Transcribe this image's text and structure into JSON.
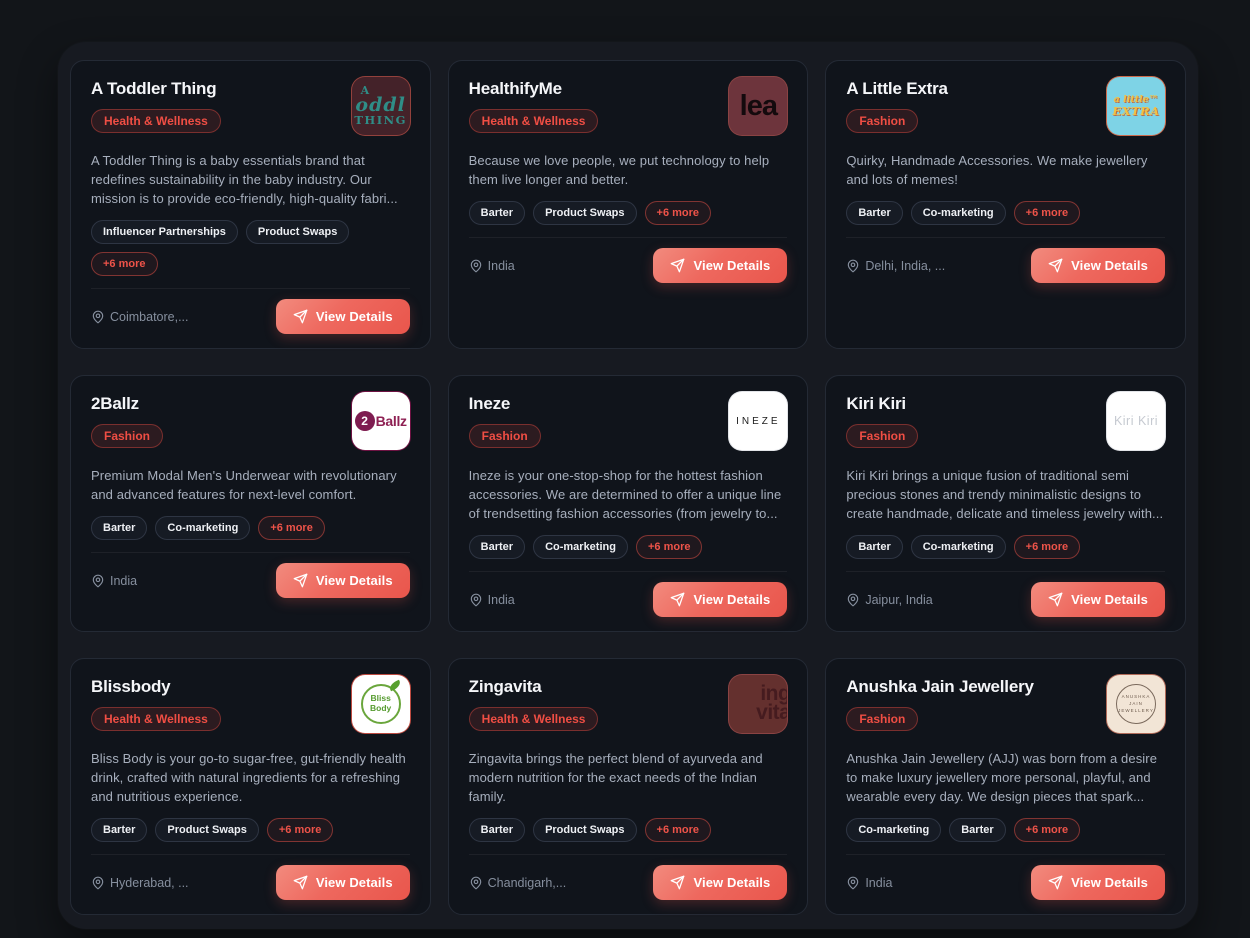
{
  "theme": {
    "accent": "#e9564c",
    "category_badge_color": "#f04e44",
    "more_badge_color": "#ee5349",
    "page_bg": "#121519",
    "panel_bg": "#171a21",
    "card_bg": "#10141b"
  },
  "icons": {
    "location": "map-pin-icon",
    "cta": "send-icon"
  },
  "cards": [
    {
      "name": "A Toddler Thing",
      "category": "Health & Wellness",
      "description": "A Toddler Thing is a baby essentials brand that redefines sustainability in the baby industry. Our mission is to provide eco-friendly, high-quality fabri...",
      "tags": [
        "Influencer Partnerships",
        "Product Swaps"
      ],
      "more_label": "+6 more",
      "location": "Coimbatore,...",
      "cta_label": "View Details",
      "logo": {
        "variant": "toddler",
        "bg": "#442229",
        "fg": "#2f8d87",
        "border": "#93413c",
        "lines": [
          "A",
          "oddl",
          "THING"
        ]
      }
    },
    {
      "name": "HealthifyMe",
      "category": "Health & Wellness",
      "description": "Because we love people, we put technology to help them live longer and better.",
      "tags": [
        "Barter",
        "Product Swaps"
      ],
      "more_label": "+6 more",
      "location": "India",
      "cta_label": "View Details",
      "logo": {
        "variant": "crop-big",
        "bg": "#6d343c",
        "fg": "#140a0d",
        "border": "#8a4343",
        "lines": [
          "lea"
        ]
      }
    },
    {
      "name": "A Little Extra",
      "category": "Fashion",
      "description": "Quirky, Handmade Accessories. We make jewellery and lots of memes!",
      "tags": [
        "Barter",
        "Co-marketing"
      ],
      "more_label": "+6 more",
      "location": "Delhi, India, ...",
      "cta_label": "View Details",
      "logo": {
        "variant": "little-extra",
        "bg": "#7ed3e6",
        "fg": "#f2c043",
        "border": "#cc6a4c",
        "lines": [
          "a little™",
          "EXTRA"
        ]
      }
    },
    {
      "name": "2Ballz",
      "category": "Fashion",
      "description": "Premium Modal Men's Underwear with revolutionary and advanced features for next-level comfort.",
      "tags": [
        "Barter",
        "Co-marketing"
      ],
      "more_label": "+6 more",
      "location": "India",
      "cta_label": "View Details",
      "logo": {
        "variant": "2ballz",
        "bg": "#ffffff",
        "fg": "#8e2053",
        "border": "#6d1242",
        "lines": [
          "2",
          "Ballz"
        ]
      }
    },
    {
      "name": "Ineze",
      "category": "Fashion",
      "description": "Ineze is your one-stop-shop for the hottest fashion accessories. We are determined to offer a unique line of trendsetting fashion accessories (from jewelry to...",
      "tags": [
        "Barter",
        "Co-marketing"
      ],
      "more_label": "+6 more",
      "location": "India",
      "cta_label": "View Details",
      "logo": {
        "variant": "ineze",
        "bg": "#ffffff",
        "fg": "#1c1c1c",
        "border": "#e2e4e8",
        "lines": [
          "INEZE"
        ]
      }
    },
    {
      "name": "Kiri Kiri",
      "category": "Fashion",
      "description": "Kiri Kiri brings a unique fusion of traditional semi precious stones and trendy minimalistic designs to create handmade, delicate and timeless jewelry with...",
      "tags": [
        "Barter",
        "Co-marketing"
      ],
      "more_label": "+6 more",
      "location": "Jaipur, India",
      "cta_label": "View Details",
      "logo": {
        "variant": "kirikiri",
        "bg": "#ffffff",
        "fg": "#c6cad1",
        "border": "#e2e4e8",
        "lines": [
          "Kiri Kiri"
        ]
      }
    },
    {
      "name": "Blissbody",
      "category": "Health & Wellness",
      "description": "Bliss Body is your go-to sugar-free, gut-friendly health drink, crafted with natural ingredients for a refreshing and nutritious experience.",
      "tags": [
        "Barter",
        "Product Swaps"
      ],
      "more_label": "+6 more",
      "location": "Hyderabad, ...",
      "cta_label": "View Details",
      "logo": {
        "variant": "bliss",
        "bg": "#ffffff",
        "fg": "#569b2f",
        "border": "#bc4a40",
        "lines": [
          "Bliss",
          "Body"
        ]
      }
    },
    {
      "name": "Zingavita",
      "category": "Health & Wellness",
      "description": "Zingavita brings the perfect blend of ayurveda and modern nutrition for the exact needs of the Indian family.",
      "tags": [
        "Barter",
        "Product Swaps"
      ],
      "more_label": "+6 more",
      "location": "Chandigarh,...",
      "cta_label": "View Details",
      "logo": {
        "variant": "crop-big2",
        "bg": "#64302e",
        "fg": "#451b1f",
        "border": "#8a4343",
        "lines": [
          "ing",
          "vita"
        ]
      }
    },
    {
      "name": "Anushka Jain Jewellery",
      "category": "Fashion",
      "description": "Anushka Jain Jewellery (AJJ) was born from a desire to make luxury jewellery more personal, playful, and wearable every day. We design pieces that spark...",
      "tags": [
        "Co-marketing",
        "Barter"
      ],
      "more_label": "+6 more",
      "location": "India",
      "cta_label": "View Details",
      "logo": {
        "variant": "ajj",
        "bg": "#f2e5d6",
        "fg": "#6e5c4e",
        "border": "#b06a58",
        "lines": [
          "ANUSHKA",
          "JAIN",
          "JEWELLERY"
        ]
      }
    }
  ]
}
